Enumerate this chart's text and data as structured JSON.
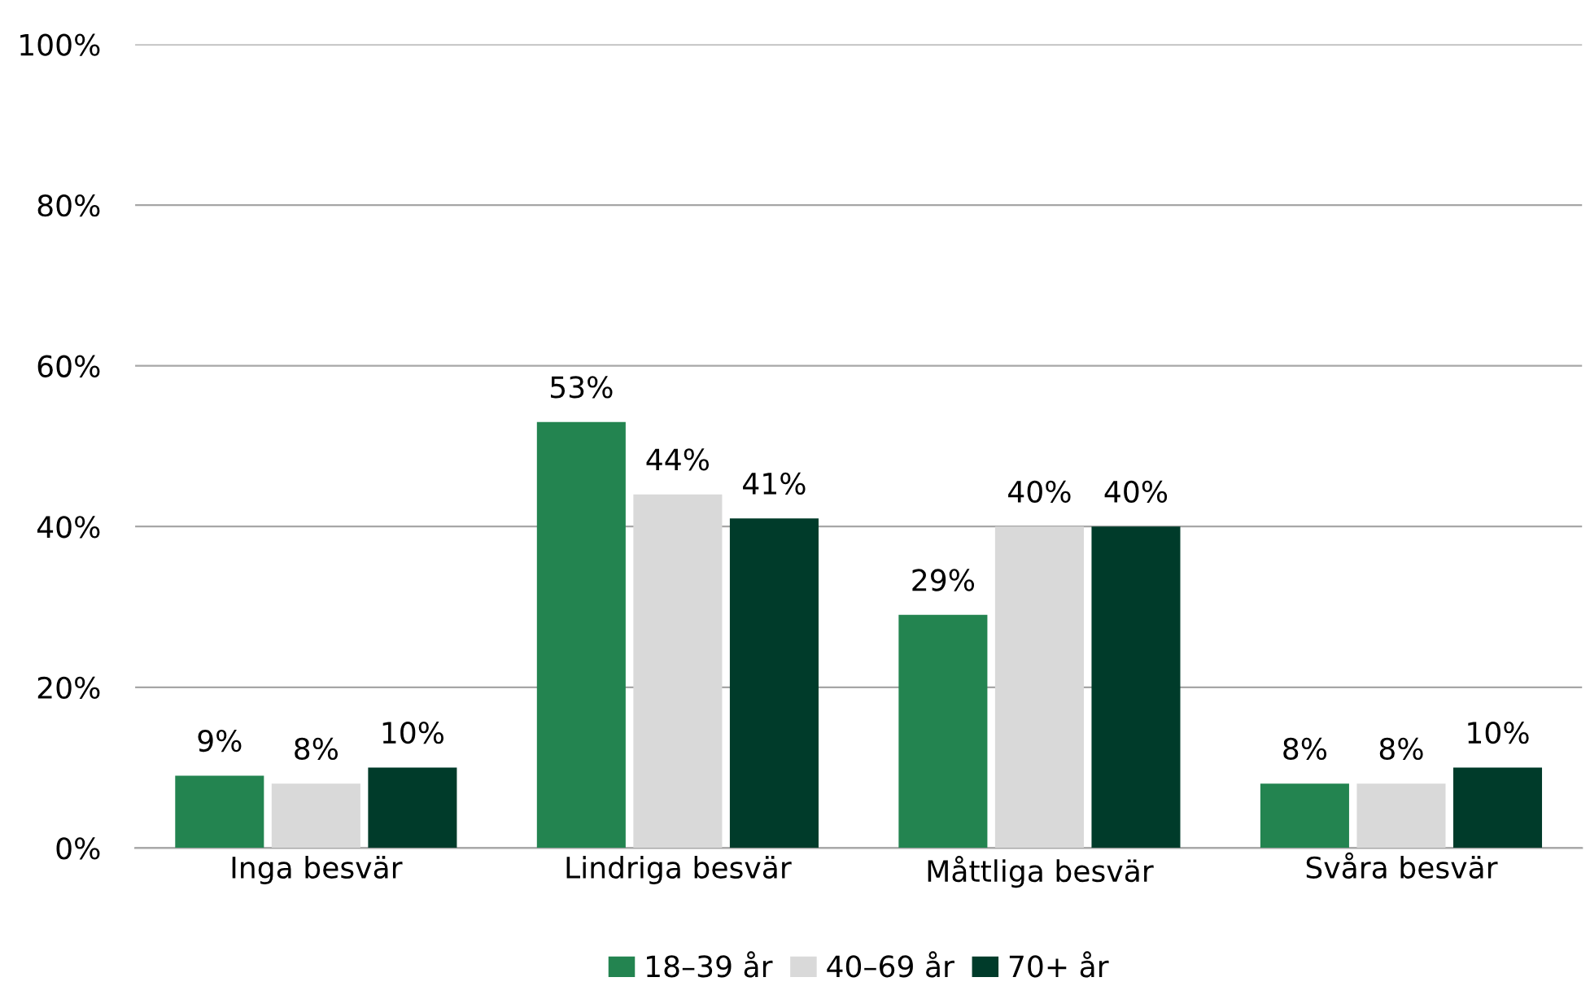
{
  "chart_data": {
    "type": "bar",
    "categories": [
      "Inga besvär",
      "Lindriga besvär",
      "Måttliga besvär",
      "Svåra besvär"
    ],
    "series": [
      {
        "name": "18–39 år",
        "color": "#238450",
        "values": [
          9,
          53,
          29,
          8
        ],
        "value_labels": [
          "9%",
          "53%",
          "29%",
          "8%"
        ]
      },
      {
        "name": "40–69 år",
        "color": "#d9d9d9",
        "values": [
          8,
          44,
          40,
          8
        ],
        "value_labels": [
          "8%",
          "44%",
          "40%",
          "8%"
        ]
      },
      {
        "name": "70+ år",
        "color": "#003b2a",
        "values": [
          10,
          41,
          40,
          10
        ],
        "value_labels": [
          "10%",
          "41%",
          "40%",
          "10%"
        ]
      }
    ],
    "ylim": [
      0,
      100
    ],
    "yticks": [
      {
        "value": 0,
        "label": "0%"
      },
      {
        "value": 20,
        "label": "20%"
      },
      {
        "value": 40,
        "label": "40%"
      },
      {
        "value": 60,
        "label": "60%"
      },
      {
        "value": 80,
        "label": "80%"
      },
      {
        "value": 100,
        "label": "100%"
      }
    ],
    "grid": "y",
    "legend": "bottom"
  }
}
